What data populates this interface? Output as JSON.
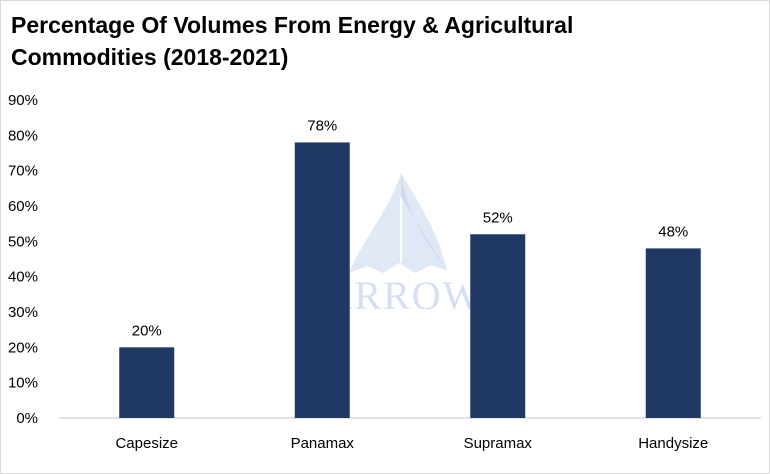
{
  "chart_data": {
    "type": "bar",
    "title": "Percentage Of Volumes From Energy & Agricultural Commodities (2018-2021)",
    "categories": [
      "Capesize",
      "Panamax",
      "Supramax",
      "Handysize"
    ],
    "values": [
      20,
      78,
      52,
      48
    ],
    "data_labels": [
      "20%",
      "78%",
      "52%",
      "48%"
    ],
    "y_ticks": [
      0,
      10,
      20,
      30,
      40,
      50,
      60,
      70,
      80,
      90
    ],
    "y_tick_labels": [
      "0%",
      "10%",
      "20%",
      "30%",
      "40%",
      "50%",
      "60%",
      "70%",
      "80%",
      "90%"
    ],
    "ylim": [
      0,
      90
    ],
    "grid": false,
    "legend": "none",
    "bar_color": "#1f3864",
    "axis_color": "#d9d9d9"
  },
  "watermark": {
    "text": "ARROW",
    "icon": "sail-logo-icon",
    "color": "#b4c6e7"
  }
}
